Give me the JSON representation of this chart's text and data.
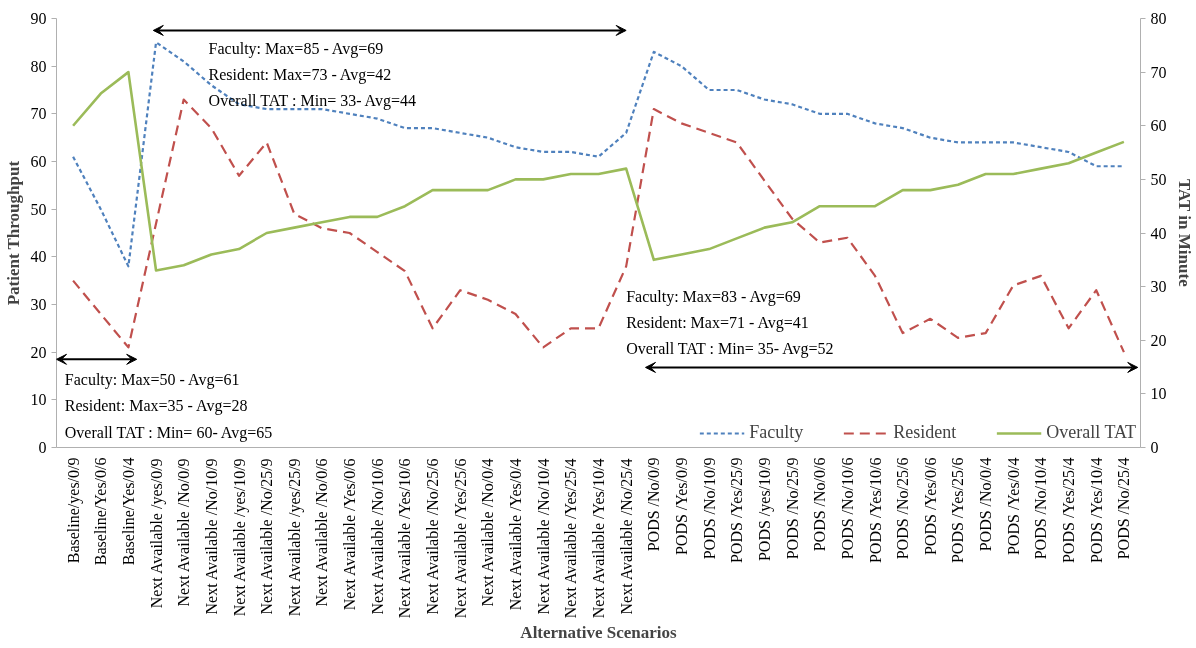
{
  "chart_data": {
    "type": "line",
    "xlabel": "Alternative Scenarios",
    "ylabel": "Patient Throughput",
    "y2label": "TAT in Minute",
    "categories": [
      "Baseline/yes/0/9",
      "Baseline/Yes/0/6",
      "Baseline/Yes/0/4",
      "Next Available /yes/0/9",
      "Next Available /No/0/9",
      "Next Available /No/10/9",
      "Next Available /yes/10/9",
      "Next Available /No/25/9",
      "Next Available /yes/25/9",
      "Next Available /No/0/6",
      "Next Available /Yes/0/6",
      "Next Available /No/10/6",
      "Next Available /Yes/10/6",
      "Next Available /No/25/6",
      "Next Available /Yes/25/6",
      "Next Available /No/0/4",
      "Next Available /Yes/0/4",
      "Next Available /No/10/4",
      "Next Available /Yes/25/4",
      "Next Available /Yes/10/4",
      "Next Available /No/25/4",
      "PODS /No/0/9",
      "PODS /Yes/0/9",
      "PODS /No/10/9",
      "PODS /Yes/25/9",
      "PODS /yes/10/9",
      "PODS /No/25/9",
      "PODS /No/0/6",
      "PODS /No/10/6",
      "PODS /Yes/10/6",
      "PODS /No/25/6",
      "PODS /Yes/0/6",
      "PODS /Yes/25/6",
      "PODS /No/0/4",
      "PODS /Yes/0/4",
      "PODS /No/10/4",
      "PODS /Yes/25/4",
      "PODS /Yes/10/4",
      "PODS /No/25/4"
    ],
    "series": [
      {
        "name": "Faculty",
        "color": "#4f81bd",
        "line_style": "dotted",
        "values": [
          61,
          50,
          38,
          85,
          81,
          76,
          72,
          71,
          71,
          71,
          70,
          69,
          67,
          67,
          66,
          65,
          63,
          62,
          62,
          61,
          66,
          83,
          80,
          75,
          75,
          73,
          72,
          70,
          70,
          68,
          67,
          65,
          64,
          64,
          64,
          63,
          62,
          59,
          59
        ]
      },
      {
        "name": "Resident",
        "color": "#c0504d",
        "line_style": "dashed",
        "values": [
          35,
          28,
          21,
          47,
          73,
          67,
          57,
          64,
          49,
          46,
          45,
          41,
          37,
          25,
          33,
          31,
          28,
          21,
          25,
          25,
          38,
          71,
          68,
          66,
          64,
          56,
          48,
          43,
          44,
          36,
          24,
          27,
          23,
          24,
          34,
          36,
          25,
          33,
          20
        ]
      },
      {
        "name": "Overall TAT",
        "color": "#9bbb59",
        "line_style": "solid",
        "axis": "y2",
        "values": [
          60,
          66,
          70,
          33,
          34,
          36,
          37,
          40,
          41,
          42,
          43,
          43,
          45,
          48,
          48,
          48,
          50,
          50,
          51,
          51,
          52,
          35,
          36,
          37,
          39,
          41,
          42,
          45,
          45,
          45,
          48,
          48,
          49,
          51,
          51,
          52,
          53,
          55,
          57
        ]
      }
    ],
    "ylim": [
      0,
      90
    ],
    "yticks": [
      0,
      10,
      20,
      30,
      40,
      50,
      60,
      70,
      80,
      90
    ],
    "y2lim": [
      0,
      80
    ],
    "y2ticks": [
      0,
      10,
      20,
      30,
      40,
      50,
      60,
      70,
      80
    ],
    "grid": false,
    "legend": "bottom right",
    "marker": "none",
    "annotations": [
      "Faculty: Max=85  - Avg=69",
      "Resident: Max=73  - Avg=42",
      "Overall TAT : Min= 33- Avg=44",
      "Faculty: Max=50  - Avg=61",
      "Resident: Max=35  - Avg=28",
      "Overall TAT : Min= 60- Avg=65",
      "Faculty: Max=83  - Avg=69",
      "Resident: Max=71  - Avg=41",
      "Overall TAT : Min= 35- Avg=52"
    ]
  }
}
